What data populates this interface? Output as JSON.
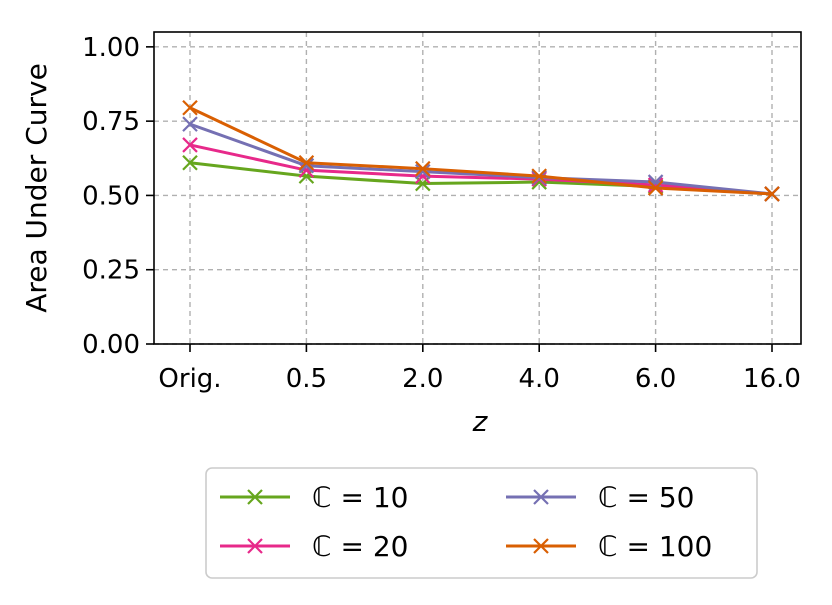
{
  "chart_data": {
    "type": "line",
    "categories": [
      "Orig.",
      "0.5",
      "2.0",
      "4.0",
      "6.0",
      "16.0"
    ],
    "xlabel": "z",
    "ylabel": "Area Under Curve",
    "ylim": [
      0,
      1.05
    ],
    "yticks": [
      "0.00",
      "0.25",
      "0.50",
      "0.75",
      "1.00"
    ],
    "grid": true,
    "legend_position": "bottom",
    "series": [
      {
        "name": "ℂ = 10",
        "color": "#66a61e",
        "marker": "x",
        "values": [
          0.61,
          0.565,
          0.54,
          0.545,
          0.53,
          0.505
        ]
      },
      {
        "name": "ℂ = 20",
        "color": "#e7298a",
        "marker": "x",
        "values": [
          0.67,
          0.585,
          0.565,
          0.555,
          0.535,
          0.505
        ]
      },
      {
        "name": "ℂ = 50",
        "color": "#7570b3",
        "marker": "x",
        "values": [
          0.74,
          0.6,
          0.58,
          0.56,
          0.545,
          0.505
        ]
      },
      {
        "name": "ℂ = 100",
        "color": "#d95f02",
        "marker": "x",
        "values": [
          0.795,
          0.61,
          0.59,
          0.565,
          0.525,
          0.505
        ]
      }
    ]
  }
}
